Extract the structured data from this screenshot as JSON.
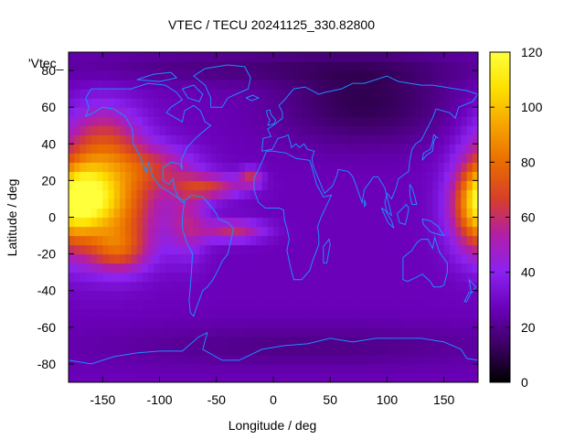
{
  "chart_data": {
    "type": "heatmap",
    "title": "VTEC / TECU 20241125_330.82800",
    "xlabel": "Longitude / deg",
    "ylabel": "Latitude / deg",
    "series_label": "'Vtec_",
    "xlim": [
      -180,
      180
    ],
    "ylim": [
      -90,
      90
    ],
    "x_ticks": [
      -150,
      -100,
      -50,
      0,
      50,
      100,
      150
    ],
    "y_ticks": [
      -80,
      -60,
      -40,
      -20,
      0,
      20,
      40,
      60,
      80
    ],
    "colorbar": {
      "range": [
        0,
        120
      ],
      "ticks": [
        0,
        20,
        40,
        60,
        80,
        100,
        120
      ],
      "stops": [
        "#000000",
        "#3b0062",
        "#6a00b8",
        "#8a22f0",
        "#b21ea8",
        "#d63f2a",
        "#ea6c00",
        "#f6a300",
        "#fde000",
        "#ffff3c"
      ]
    },
    "coastline_color": "#1e8cff",
    "grid": false
  }
}
